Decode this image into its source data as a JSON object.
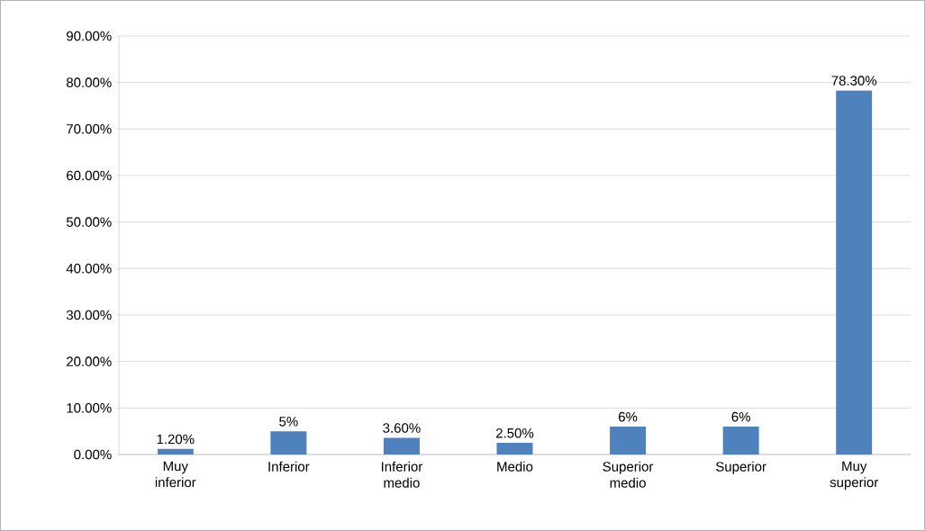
{
  "chart_data": {
    "type": "bar",
    "categories": [
      "Muy inferior",
      "Inferior",
      "Inferior medio",
      "Medio",
      "Superior medio",
      "Superior",
      "Muy superior"
    ],
    "values": [
      1.2,
      5,
      3.6,
      2.5,
      6,
      6,
      78.3
    ],
    "value_labels": [
      "1.20%",
      "5%",
      "3.60%",
      "2.50%",
      "6%",
      "6%",
      "78.30%"
    ],
    "color": "#4f81bd",
    "ylim": [
      0,
      90
    ],
    "yticks": [
      {
        "value": 0,
        "label": "0.00%"
      },
      {
        "value": 10,
        "label": "10.00%"
      },
      {
        "value": 20,
        "label": "20.00%"
      },
      {
        "value": 30,
        "label": "30.00%"
      },
      {
        "value": 40,
        "label": "40.00%"
      },
      {
        "value": 50,
        "label": "50.00%"
      },
      {
        "value": 60,
        "label": "60.00%"
      },
      {
        "value": 70,
        "label": "70.00%"
      },
      {
        "value": 80,
        "label": "80.00%"
      },
      {
        "value": 90,
        "label": "90.00%"
      }
    ],
    "grid": "y"
  }
}
